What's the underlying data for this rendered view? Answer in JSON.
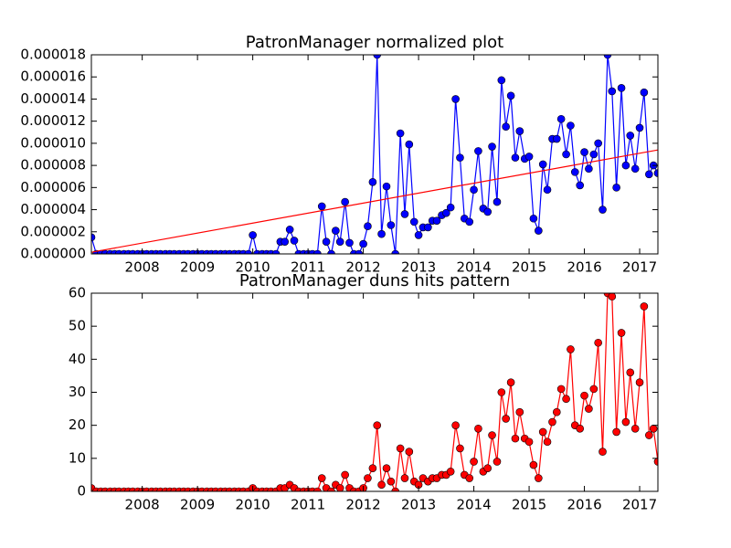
{
  "chart_data": [
    {
      "type": "line",
      "title": "PatronManager normalized plot",
      "xlim": [
        2007.08,
        2017.33
      ],
      "xticks": [
        2008,
        2009,
        2010,
        2011,
        2012,
        2013,
        2014,
        2015,
        2016,
        2017
      ],
      "ylim": [
        0,
        1.8e-05
      ],
      "yticks": [
        {
          "value": 0,
          "label": "0.000000"
        },
        {
          "value": 2e-06,
          "label": "0.000002"
        },
        {
          "value": 4e-06,
          "label": "0.000004"
        },
        {
          "value": 6e-06,
          "label": "0.000006"
        },
        {
          "value": 8e-06,
          "label": "0.000008"
        },
        {
          "value": 1e-05,
          "label": "0.000010"
        },
        {
          "value": 1.2e-05,
          "label": "0.000012"
        },
        {
          "value": 1.4e-05,
          "label": "0.000014"
        },
        {
          "value": 1.6e-05,
          "label": "0.000016"
        },
        {
          "value": 1.8e-05,
          "label": "0.000018"
        }
      ],
      "series": [
        {
          "color": "#0000ff",
          "marker": true,
          "x": [
            2007.08,
            2007.17,
            2007.25,
            2007.33,
            2007.42,
            2007.5,
            2007.58,
            2007.67,
            2007.75,
            2007.83,
            2007.92,
            2008,
            2008.08,
            2008.17,
            2008.25,
            2008.33,
            2008.42,
            2008.5,
            2008.58,
            2008.67,
            2008.75,
            2008.83,
            2008.92,
            2009,
            2009.08,
            2009.17,
            2009.25,
            2009.33,
            2009.42,
            2009.5,
            2009.58,
            2009.67,
            2009.75,
            2009.83,
            2009.92,
            2010,
            2010.08,
            2010.17,
            2010.25,
            2010.33,
            2010.42,
            2010.5,
            2010.58,
            2010.67,
            2010.75,
            2010.83,
            2010.92,
            2011,
            2011.08,
            2011.17,
            2011.25,
            2011.33,
            2011.42,
            2011.5,
            2011.58,
            2011.67,
            2011.75,
            2011.83,
            2011.92,
            2012,
            2012.08,
            2012.17,
            2012.25,
            2012.33,
            2012.42,
            2012.5,
            2012.58,
            2012.67,
            2012.75,
            2012.83,
            2012.92,
            2013,
            2013.08,
            2013.17,
            2013.25,
            2013.33,
            2013.42,
            2013.5,
            2013.58,
            2013.67,
            2013.75,
            2013.83,
            2013.92,
            2014,
            2014.08,
            2014.17,
            2014.25,
            2014.33,
            2014.42,
            2014.5,
            2014.58,
            2014.67,
            2014.75,
            2014.83,
            2014.92,
            2015,
            2015.08,
            2015.17,
            2015.25,
            2015.33,
            2015.42,
            2015.5,
            2015.58,
            2015.67,
            2015.75,
            2015.83,
            2015.92,
            2016,
            2016.08,
            2016.17,
            2016.25,
            2016.33,
            2016.42,
            2016.5,
            2016.58,
            2016.67,
            2016.75,
            2016.83,
            2016.92,
            2017,
            2017.08,
            2017.17,
            2017.25,
            2017.33
          ],
          "values": [
            1.5e-06,
            0,
            0,
            0,
            0,
            0,
            0,
            0,
            0,
            0,
            0,
            0,
            0,
            0,
            0,
            0,
            0,
            0,
            0,
            0,
            0,
            0,
            0,
            0,
            0,
            0,
            0,
            0,
            0,
            0,
            0,
            0,
            0,
            0,
            0,
            1.7e-06,
            0,
            0,
            0,
            0,
            0,
            1.1e-06,
            1.1e-06,
            2.2e-06,
            1.2e-06,
            0,
            0,
            0,
            0,
            0,
            4.3e-06,
            1.1e-06,
            0,
            2.1e-06,
            1.1e-06,
            4.7e-06,
            1e-06,
            0,
            0,
            9e-07,
            2.5e-06,
            6.5e-06,
            1.8e-05,
            1.8e-06,
            6.1e-06,
            2.6e-06,
            0,
            1.09e-05,
            3.6e-06,
            9.9e-06,
            2.9e-06,
            1.7e-06,
            2.4e-06,
            2.4e-06,
            3e-06,
            3e-06,
            3.5e-06,
            3.7e-06,
            4.2e-06,
            1.4e-05,
            8.7e-06,
            3.2e-06,
            2.9e-06,
            5.8e-06,
            9.3e-06,
            4.1e-06,
            3.8e-06,
            9.7e-06,
            4.7e-06,
            1.57e-05,
            1.15e-05,
            1.43e-05,
            8.7e-06,
            1.11e-05,
            8.6e-06,
            8.8e-06,
            3.2e-06,
            2.1e-06,
            8.1e-06,
            5.8e-06,
            1.04e-05,
            1.04e-05,
            1.22e-05,
            9e-06,
            1.16e-05,
            7.4e-06,
            6.2e-06,
            9.2e-06,
            7.7e-06,
            9e-06,
            1e-05,
            4e-06,
            1.8e-05,
            1.47e-05,
            6e-06,
            1.5e-05,
            8e-06,
            1.07e-05,
            7.7e-06,
            1.14e-05,
            1.46e-05,
            7.2e-06,
            8e-06,
            7.3e-06
          ]
        },
        {
          "color": "#ff0000",
          "marker": false,
          "x": [
            2007.08,
            2017.33
          ],
          "values": [
            1.5e-07,
            9.4e-06
          ]
        }
      ]
    },
    {
      "type": "line",
      "title": "PatronManager duns hits pattern",
      "xlim": [
        2007.08,
        2017.33
      ],
      "xticks": [
        2008,
        2009,
        2010,
        2011,
        2012,
        2013,
        2014,
        2015,
        2016,
        2017
      ],
      "ylim": [
        0,
        60
      ],
      "yticks": [
        0,
        10,
        20,
        30,
        40,
        50,
        60
      ],
      "series": [
        {
          "color": "#ff0000",
          "marker": true,
          "x": [
            2007.08,
            2007.17,
            2007.25,
            2007.33,
            2007.42,
            2007.5,
            2007.58,
            2007.67,
            2007.75,
            2007.83,
            2007.92,
            2008,
            2008.08,
            2008.17,
            2008.25,
            2008.33,
            2008.42,
            2008.5,
            2008.58,
            2008.67,
            2008.75,
            2008.83,
            2008.92,
            2009,
            2009.08,
            2009.17,
            2009.25,
            2009.33,
            2009.42,
            2009.5,
            2009.58,
            2009.67,
            2009.75,
            2009.83,
            2009.92,
            2010,
            2010.08,
            2010.17,
            2010.25,
            2010.33,
            2010.42,
            2010.5,
            2010.58,
            2010.67,
            2010.75,
            2010.83,
            2010.92,
            2011,
            2011.08,
            2011.17,
            2011.25,
            2011.33,
            2011.42,
            2011.5,
            2011.58,
            2011.67,
            2011.75,
            2011.83,
            2011.92,
            2012,
            2012.08,
            2012.17,
            2012.25,
            2012.33,
            2012.42,
            2012.5,
            2012.58,
            2012.67,
            2012.75,
            2012.83,
            2012.92,
            2013,
            2013.08,
            2013.17,
            2013.25,
            2013.33,
            2013.42,
            2013.5,
            2013.58,
            2013.67,
            2013.75,
            2013.83,
            2013.92,
            2014,
            2014.08,
            2014.17,
            2014.25,
            2014.33,
            2014.42,
            2014.5,
            2014.58,
            2014.67,
            2014.75,
            2014.83,
            2014.92,
            2015,
            2015.08,
            2015.17,
            2015.25,
            2015.33,
            2015.42,
            2015.5,
            2015.58,
            2015.67,
            2015.75,
            2015.83,
            2015.92,
            2016,
            2016.08,
            2016.17,
            2016.25,
            2016.33,
            2016.42,
            2016.5,
            2016.58,
            2016.67,
            2016.75,
            2016.83,
            2016.92,
            2017,
            2017.08,
            2017.17,
            2017.25,
            2017.33
          ],
          "values": [
            1,
            0,
            0,
            0,
            0,
            0,
            0,
            0,
            0,
            0,
            0,
            0,
            0,
            0,
            0,
            0,
            0,
            0,
            0,
            0,
            0,
            0,
            0,
            0,
            0,
            0,
            0,
            0,
            0,
            0,
            0,
            0,
            0,
            0,
            0,
            1,
            0,
            0,
            0,
            0,
            0,
            1,
            1,
            2,
            1,
            0,
            0,
            0,
            0,
            0,
            4,
            1,
            0,
            2,
            1,
            5,
            1,
            0,
            0,
            1,
            4,
            7,
            20,
            2,
            7,
            3,
            0,
            13,
            4,
            12,
            3,
            2,
            4,
            3,
            4,
            4,
            5,
            5,
            6,
            20,
            13,
            5,
            4,
            9,
            19,
            6,
            7,
            17,
            9,
            30,
            22,
            33,
            16,
            24,
            16,
            15,
            8,
            4,
            18,
            15,
            21,
            24,
            31,
            28,
            43,
            20,
            19,
            29,
            25,
            31,
            45,
            12,
            60,
            59,
            18,
            48,
            21,
            36,
            19,
            33,
            56,
            17,
            19,
            9
          ]
        }
      ]
    }
  ]
}
